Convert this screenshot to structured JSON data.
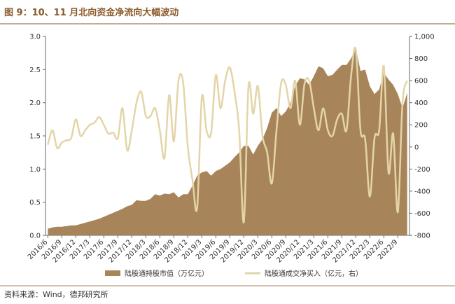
{
  "chart_data": {
    "type": "area_line",
    "title": "图 9：10、11 月北向资金净流向大幅波动",
    "source": "资料来源：Wind，德邦研究所",
    "categories": [
      "2016/6",
      null,
      null,
      "2016/9",
      null,
      null,
      "2016/12",
      null,
      null,
      "2017/3",
      null,
      null,
      "2017/6",
      null,
      null,
      "2017/9",
      null,
      null,
      "2017/12",
      null,
      null,
      "2018/3",
      null,
      null,
      "2018/6",
      null,
      null,
      "2018/9",
      null,
      null,
      "2018/12",
      null,
      null,
      "2019/3",
      null,
      null,
      "2019/6",
      null,
      null,
      "2019/9",
      null,
      null,
      "2019/12",
      null,
      null,
      "2020/3",
      null,
      null,
      "2020/6",
      null,
      null,
      "2020/9",
      null,
      null,
      "2020/12",
      null,
      null,
      "2021/3",
      null,
      null,
      "2021/6",
      null,
      null,
      "2021/9",
      null,
      null,
      "2021/12",
      null,
      null,
      "2022/3",
      null,
      null,
      "2022/6",
      null,
      null,
      "2022/9",
      null,
      null
    ],
    "series": [
      {
        "name": "陆股通持股市值（万亿元）",
        "color": "#a8845a",
        "kind": "area",
        "values": [
          0.1,
          0.12,
          0.13,
          0.13,
          0.14,
          0.15,
          0.15,
          0.17,
          0.19,
          0.21,
          0.23,
          0.25,
          0.28,
          0.31,
          0.34,
          0.37,
          0.4,
          0.44,
          0.46,
          0.53,
          0.52,
          0.52,
          0.55,
          0.62,
          0.6,
          0.63,
          0.62,
          0.65,
          0.57,
          0.62,
          0.62,
          0.75,
          0.9,
          0.95,
          0.97,
          0.9,
          0.97,
          1.0,
          1.05,
          1.1,
          1.18,
          1.25,
          1.35,
          1.35,
          1.22,
          1.35,
          1.45,
          1.62,
          1.85,
          1.92,
          1.8,
          1.87,
          2.0,
          2.25,
          2.37,
          2.35,
          2.27,
          2.4,
          2.55,
          2.52,
          2.4,
          2.42,
          2.5,
          2.57,
          2.57,
          2.67,
          2.82,
          2.48,
          2.5,
          2.25,
          2.13,
          2.2,
          2.45,
          2.35,
          2.27,
          2.13,
          1.92,
          2.15
        ]
      },
      {
        "name": "陆股通成交净买入（亿元，右）",
        "color": "#e3d5a8",
        "kind": "line",
        "axis": "y2",
        "values": [
          20,
          150,
          -10,
          40,
          60,
          80,
          250,
          100,
          150,
          200,
          220,
          270,
          200,
          120,
          130,
          80,
          350,
          -30,
          150,
          400,
          500,
          280,
          280,
          350,
          150,
          -100,
          470,
          50,
          600,
          580,
          0,
          -300,
          -550,
          450,
          150,
          130,
          650,
          350,
          600,
          720,
          500,
          150,
          -680,
          550,
          300,
          550,
          100,
          -50,
          -330,
          150,
          580,
          560,
          350,
          600,
          200,
          570,
          600,
          350,
          150,
          350,
          150,
          100,
          250,
          300,
          150,
          650,
          880,
          150,
          70,
          -450,
          80,
          150,
          730,
          -230,
          120,
          -590,
          400,
          600
        ]
      }
    ],
    "ylim": [
      0,
      3.0
    ],
    "yticks": [
      {
        "value": 0,
        "label": "0.0"
      },
      0.5,
      {
        "value": 1,
        "label": "1.0"
      },
      1.5,
      {
        "value": 2,
        "label": "2.0"
      },
      2.5,
      {
        "value": 3,
        "label": "3.0"
      }
    ],
    "y2lim": [
      -800,
      1000
    ],
    "y2ticks": [
      -800,
      -600,
      -400,
      -200,
      0,
      200,
      400,
      600,
      800,
      {
        "value": 1000,
        "label": "1,000"
      }
    ]
  }
}
